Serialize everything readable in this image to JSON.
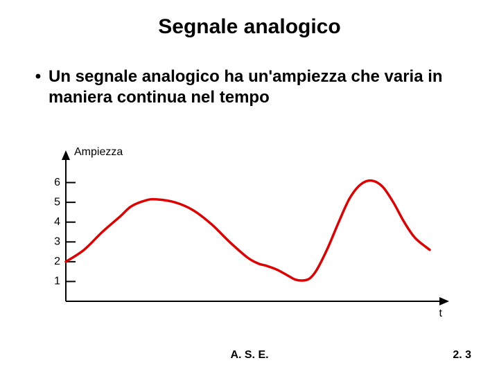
{
  "title": "Segnale analogico",
  "bullet": "Un segnale analogico ha un'ampiezza che varia in maniera continua nel tempo",
  "footer_center": "A. S. E.",
  "footer_right": "2. 3",
  "chart": {
    "type": "line",
    "y_axis_label": "Ampiezza",
    "x_axis_label": "t",
    "y_ticks": [
      1,
      2,
      3,
      4,
      5,
      6
    ],
    "ylim": [
      0,
      7
    ],
    "axis_color": "#000000",
    "axis_width": 2,
    "tick_length": 14,
    "tick_width": 2,
    "curve_color": "#e00000",
    "curve_width": 3.5,
    "label_fontsize": 16,
    "curve_points": [
      [
        0.0,
        2.0
      ],
      [
        0.05,
        2.6
      ],
      [
        0.1,
        3.5
      ],
      [
        0.15,
        4.3
      ],
      [
        0.18,
        4.8
      ],
      [
        0.22,
        5.1
      ],
      [
        0.25,
        5.15
      ],
      [
        0.3,
        5.0
      ],
      [
        0.35,
        4.6
      ],
      [
        0.4,
        3.9
      ],
      [
        0.45,
        3.0
      ],
      [
        0.5,
        2.2
      ],
      [
        0.53,
        1.9
      ],
      [
        0.55,
        1.8
      ],
      [
        0.58,
        1.6
      ],
      [
        0.61,
        1.3
      ],
      [
        0.63,
        1.1
      ],
      [
        0.65,
        1.05
      ],
      [
        0.67,
        1.15
      ],
      [
        0.69,
        1.6
      ],
      [
        0.72,
        2.7
      ],
      [
        0.75,
        4.0
      ],
      [
        0.78,
        5.2
      ],
      [
        0.81,
        5.9
      ],
      [
        0.84,
        6.1
      ],
      [
        0.87,
        5.8
      ],
      [
        0.9,
        5.0
      ],
      [
        0.93,
        4.0
      ],
      [
        0.96,
        3.2
      ],
      [
        1.0,
        2.6
      ]
    ]
  }
}
